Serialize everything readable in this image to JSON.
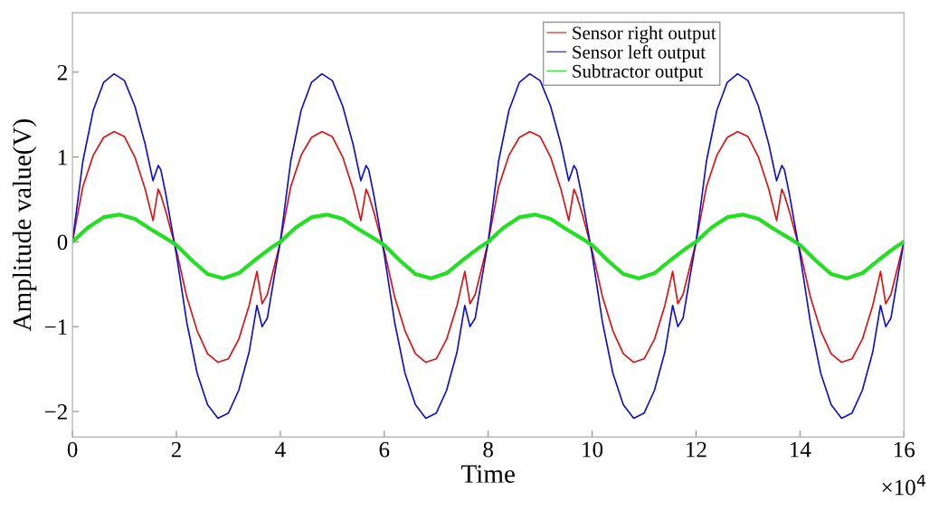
{
  "chart_data": {
    "type": "line",
    "xlabel": "Time",
    "ylabel": "Amplitude value(V)",
    "annotations": [
      "×10$^{4}$"
    ],
    "x": [
      0,
      0.2,
      0.4,
      0.6,
      0.8,
      1,
      1.2,
      1.4,
      1.55,
      1.65,
      1.7,
      1.8,
      1.9,
      2,
      2.2,
      2.4,
      2.6,
      2.8,
      3,
      3.2,
      3.4,
      3.55,
      3.65,
      3.75,
      3.9,
      4,
      4.2,
      4.4,
      4.6,
      4.8,
      5,
      5.2,
      5.4,
      5.55,
      5.65,
      5.7,
      5.8,
      5.9,
      6,
      6.2,
      6.4,
      6.6,
      6.8,
      7,
      7.2,
      7.4,
      7.55,
      7.65,
      7.75,
      7.9,
      8,
      8.2,
      8.4,
      8.6,
      8.8,
      9,
      9.2,
      9.4,
      9.55,
      9.65,
      9.7,
      9.8,
      9.9,
      10,
      10.2,
      10.4,
      10.6,
      10.8,
      11,
      11.2,
      11.4,
      11.55,
      11.65,
      11.75,
      11.9,
      12,
      12.2,
      12.4,
      12.6,
      12.8,
      13,
      13.2,
      13.4,
      13.55,
      13.65,
      13.7,
      13.8,
      13.9,
      14,
      14.2,
      14.4,
      14.6,
      14.8,
      15,
      15.2,
      15.4,
      15.55,
      15.65,
      15.75,
      15.9,
      16
    ],
    "series": [
      {
        "name": "Sensor right output",
        "color": "#e01010",
        "values": [
          0,
          0.65,
          1.02,
          1.23,
          1.3,
          1.24,
          1.0,
          0.62,
          0.25,
          0.62,
          0.55,
          0.35,
          0.12,
          -0.1,
          -0.65,
          -1.05,
          -1.32,
          -1.42,
          -1.38,
          -1.15,
          -0.75,
          -0.35,
          -0.73,
          -0.62,
          -0.25,
          0,
          0.65,
          1.02,
          1.23,
          1.3,
          1.24,
          1.0,
          0.62,
          0.25,
          0.62,
          0.55,
          0.35,
          0.12,
          -0.1,
          -0.65,
          -1.05,
          -1.32,
          -1.42,
          -1.38,
          -1.15,
          -0.75,
          -0.35,
          -0.73,
          -0.62,
          -0.25,
          0,
          0.65,
          1.02,
          1.23,
          1.3,
          1.24,
          1.0,
          0.62,
          0.25,
          0.62,
          0.55,
          0.35,
          0.12,
          -0.1,
          -0.65,
          -1.05,
          -1.32,
          -1.42,
          -1.38,
          -1.15,
          -0.75,
          -0.35,
          -0.73,
          -0.62,
          -0.25,
          0,
          0.65,
          1.02,
          1.23,
          1.3,
          1.24,
          1.0,
          0.62,
          0.25,
          0.62,
          0.55,
          0.35,
          0.12,
          -0.1,
          -0.65,
          -1.05,
          -1.32,
          -1.42,
          -1.38,
          -1.15,
          -0.75,
          -0.35,
          -0.73,
          -0.62,
          -0.25,
          0
        ]
      },
      {
        "name": "Sensor left output",
        "color": "#1010d0",
        "values": [
          0,
          0.95,
          1.55,
          1.88,
          1.98,
          1.9,
          1.6,
          1.15,
          0.72,
          0.9,
          0.85,
          0.55,
          0.2,
          -0.15,
          -0.95,
          -1.55,
          -1.92,
          -2.08,
          -2.02,
          -1.75,
          -1.3,
          -0.75,
          -1.0,
          -0.9,
          -0.35,
          0,
          0.95,
          1.55,
          1.88,
          1.98,
          1.9,
          1.6,
          1.15,
          0.72,
          0.9,
          0.85,
          0.55,
          0.2,
          -0.15,
          -0.95,
          -1.55,
          -1.92,
          -2.08,
          -2.02,
          -1.75,
          -1.3,
          -0.75,
          -1.0,
          -0.9,
          -0.35,
          0,
          0.95,
          1.55,
          1.88,
          1.98,
          1.9,
          1.6,
          1.15,
          0.72,
          0.9,
          0.85,
          0.55,
          0.2,
          -0.15,
          -0.95,
          -1.55,
          -1.92,
          -2.08,
          -2.02,
          -1.75,
          -1.3,
          -0.75,
          -1.0,
          -0.9,
          -0.35,
          0,
          0.95,
          1.55,
          1.88,
          1.98,
          1.9,
          1.6,
          1.15,
          0.72,
          0.9,
          0.85,
          0.55,
          0.2,
          -0.15,
          -0.95,
          -1.55,
          -1.92,
          -2.08,
          -2.02,
          -1.75,
          -1.3,
          -0.75,
          -1.0,
          -0.9,
          -0.35,
          0
        ]
      },
      {
        "name": "Subtractor output",
        "color": "#20e020",
        "x": [
          0,
          0.3,
          0.6,
          0.9,
          1.2,
          1.5,
          1.8,
          2,
          2.3,
          2.6,
          2.9,
          3.2,
          3.5,
          3.8,
          4,
          4.3,
          4.6,
          4.9,
          5.2,
          5.5,
          5.8,
          6,
          6.3,
          6.6,
          6.9,
          7.2,
          7.5,
          7.8,
          8,
          8.3,
          8.6,
          8.9,
          9.2,
          9.5,
          9.8,
          10,
          10.3,
          10.6,
          10.9,
          11.2,
          11.5,
          11.8,
          12,
          12.3,
          12.6,
          12.9,
          13.2,
          13.5,
          13.8,
          14,
          14.3,
          14.6,
          14.9,
          15.2,
          15.5,
          15.8,
          16
        ],
        "values": [
          0,
          0.17,
          0.29,
          0.32,
          0.27,
          0.15,
          0.04,
          -0.04,
          -0.22,
          -0.38,
          -0.43,
          -0.37,
          -0.22,
          -0.08,
          0,
          0.17,
          0.29,
          0.32,
          0.27,
          0.15,
          0.04,
          -0.04,
          -0.22,
          -0.38,
          -0.43,
          -0.37,
          -0.22,
          -0.08,
          0,
          0.17,
          0.29,
          0.32,
          0.27,
          0.15,
          0.04,
          -0.04,
          -0.22,
          -0.38,
          -0.43,
          -0.37,
          -0.22,
          -0.08,
          0,
          0.17,
          0.29,
          0.32,
          0.27,
          0.15,
          0.04,
          -0.04,
          -0.22,
          -0.38,
          -0.43,
          -0.37,
          -0.22,
          -0.08,
          0
        ]
      }
    ],
    "xlim": [
      0,
      16
    ],
    "xticks": [
      0,
      2,
      4,
      6,
      8,
      10,
      12,
      14,
      16
    ],
    "ylim": [
      -2.3,
      2.7
    ],
    "yticks": [
      -2,
      -1,
      0,
      1,
      2
    ],
    "legend": "top right",
    "grid": false
  }
}
